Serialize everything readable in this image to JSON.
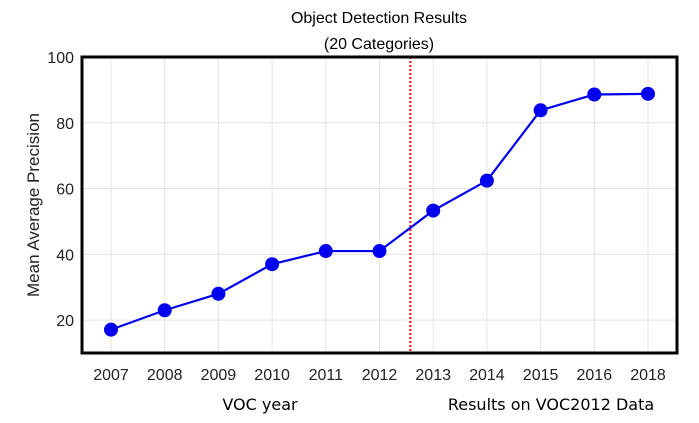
{
  "chart_data": {
    "type": "line",
    "title": [
      "Object Detection Results",
      "(20 Categories)"
    ],
    "xlabel": "VOC year",
    "ylabel": "Mean Average Precision",
    "annotation": "Results on VOC2012 Data",
    "categories": [
      "2007",
      "2008",
      "2009",
      "2010",
      "2011",
      "2012",
      "2013",
      "2014",
      "2015",
      "2016",
      "2018"
    ],
    "series": [
      {
        "values": [
          17.1,
          23.0,
          28.0,
          37.0,
          41.0,
          41.0,
          53.3,
          62.4,
          83.8,
          88.6,
          88.8
        ],
        "color": "#0000ee"
      }
    ],
    "yticks": [
      20,
      40,
      60,
      80,
      100
    ],
    "ylim": [
      10,
      100
    ],
    "grid": true,
    "divider": {
      "between": [
        "2012",
        "2013"
      ],
      "color": "#ff0000",
      "style": "dotted"
    }
  }
}
